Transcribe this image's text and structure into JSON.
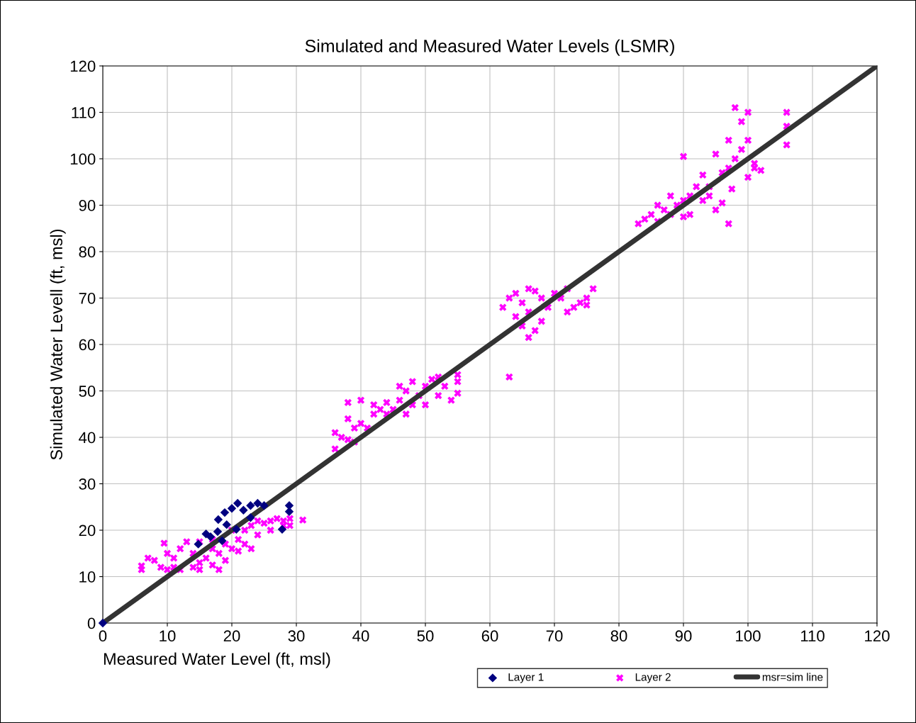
{
  "chart_data": {
    "type": "scatter",
    "title": "Simulated and Measured Water Levels (LSMR)",
    "xlabel": "Measured Water Level (ft, msl)",
    "ylabel": "Simulated Water Levell (ft, msl)",
    "xlim": [
      0,
      120
    ],
    "ylim": [
      0,
      120
    ],
    "xticks": [
      0,
      10,
      20,
      30,
      40,
      50,
      60,
      70,
      80,
      90,
      100,
      110,
      120
    ],
    "yticks": [
      0,
      10,
      20,
      30,
      40,
      50,
      60,
      70,
      80,
      90,
      100,
      110,
      120
    ],
    "grid": true,
    "legend": "bottom",
    "series": [
      {
        "name": "Layer 1",
        "color": "#000080",
        "marker": "diamond",
        "x": [
          0,
          20.9,
          24,
          25,
          22.9,
          21.8,
          20,
          18.9,
          17.9,
          28.9,
          28.9,
          27.8,
          16,
          14.8,
          18.5,
          19.2,
          20.7,
          22.9,
          17.8,
          16.7
        ],
        "values": [
          0,
          25.8,
          25.8,
          25.3,
          25.3,
          24.3,
          24.7,
          23.8,
          22.3,
          25.3,
          24,
          20.2,
          19.2,
          17,
          17.7,
          21.2,
          20.2,
          22.7,
          19.7,
          18.6
        ]
      },
      {
        "name": "Layer 2",
        "color": "#ff00ff",
        "marker": "cross",
        "x": [
          6,
          6,
          7,
          8,
          9,
          9.5,
          10,
          10,
          11,
          12,
          12,
          13,
          14,
          14,
          15,
          15,
          16,
          17,
          17,
          18,
          18,
          19,
          19,
          20,
          21,
          21,
          22,
          22,
          23,
          23,
          24,
          24,
          25,
          26,
          26,
          27,
          28,
          28,
          29,
          29,
          31,
          17,
          20,
          15,
          11,
          36,
          36,
          37,
          38,
          38,
          38,
          39,
          39,
          40,
          40,
          41,
          42,
          43,
          44,
          45,
          46,
          46,
          47,
          47,
          48,
          48,
          49,
          50,
          50,
          51,
          52,
          52,
          53,
          54,
          55,
          55,
          55,
          44,
          42,
          62,
          63,
          63,
          64,
          64,
          65,
          65,
          66,
          66,
          67,
          67,
          68,
          68,
          69,
          70,
          71,
          72,
          72,
          73,
          74,
          75,
          76,
          75,
          66,
          83,
          84,
          85,
          86,
          86,
          87,
          88,
          88,
          89,
          90,
          90,
          90,
          91,
          91,
          92,
          93,
          93,
          94,
          95,
          95,
          96,
          96,
          97,
          97,
          97,
          97.5,
          98,
          98,
          99,
          99,
          100,
          100,
          100,
          101,
          102,
          106,
          106,
          106,
          101,
          94
        ],
        "values": [
          11.5,
          12.3,
          14,
          13.5,
          12,
          17.2,
          15,
          11.5,
          14,
          16,
          11.5,
          17.5,
          12,
          15,
          13,
          17.5,
          14,
          16,
          12.5,
          11.5,
          15,
          17,
          13.5,
          16,
          18,
          15.5,
          20,
          17,
          21,
          16,
          22,
          19,
          21.5,
          22,
          20,
          22.5,
          21,
          22,
          22.5,
          21,
          22.2,
          18,
          20,
          11.5,
          12,
          37.5,
          41,
          40,
          39.5,
          44,
          47.5,
          42,
          39,
          43,
          48,
          42,
          47,
          46,
          45,
          46,
          48,
          51,
          45,
          50,
          47,
          52,
          49,
          51,
          47,
          52.5,
          49,
          53,
          51,
          48,
          52,
          49.5,
          53.5,
          47.5,
          45,
          68,
          53,
          70,
          66,
          71,
          69,
          64,
          67,
          61.5,
          71.5,
          63,
          70,
          65,
          68,
          71,
          70,
          72,
          67,
          68,
          69,
          70,
          72,
          68.5,
          72,
          86,
          87,
          88,
          86.5,
          90,
          89,
          88,
          92,
          90,
          91,
          87.5,
          100.5,
          92,
          88,
          94,
          91,
          96.5,
          94,
          89,
          101,
          97,
          90.5,
          98,
          86,
          104,
          93.5,
          111,
          100,
          102,
          108,
          110,
          96,
          104,
          98,
          97.5,
          110,
          107,
          103,
          99,
          92
        ]
      },
      {
        "name": "msr=sim line",
        "type": "line",
        "color": "#333333",
        "x": [
          0,
          120
        ],
        "values": [
          0,
          120
        ]
      }
    ]
  }
}
